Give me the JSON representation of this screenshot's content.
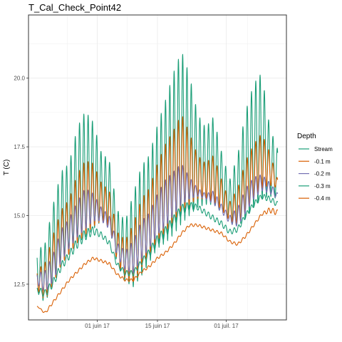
{
  "chart_data": {
    "type": "line",
    "title": "T_Cal_Check_Point42",
    "xlabel": "",
    "ylabel": "T (C)",
    "x_start": "2017-05-18",
    "x_end": "2017-07-13",
    "xlim": [
      "2017-05-16",
      "2017-07-15"
    ],
    "ylim": [
      11.2,
      22.3
    ],
    "x_ticks": [
      {
        "date": "2017-06-01",
        "label": "01 juin 17"
      },
      {
        "date": "2017-06-15",
        "label": "15 juin 17"
      },
      {
        "date": "2017-07-01",
        "label": "01 juil. 17"
      }
    ],
    "y_ticks": [
      {
        "value": 12.5,
        "label": "12.5"
      },
      {
        "value": 15.0,
        "label": "15.0"
      },
      {
        "value": 17.5,
        "label": "17.5"
      },
      {
        "value": 20.0,
        "label": "20.0"
      }
    ],
    "grid": true,
    "legend": {
      "title": "Depth",
      "position": "right"
    },
    "series": [
      {
        "name": "Stream",
        "color": "#1b9e77",
        "min": [
          12.2,
          11.8,
          12.6,
          13.3,
          13.6,
          14.0,
          14.2,
          14.5,
          14.8,
          14.6,
          13.2,
          12.6,
          12.4,
          12.8,
          13.3,
          13.8,
          14.0,
          14.3,
          14.7,
          15.0,
          15.3,
          15.4,
          15.4,
          15.2,
          14.8,
          14.6,
          14.9,
          15.3,
          15.6,
          15.7,
          15.6
        ],
        "max": [
          13.7,
          14.0,
          15.4,
          16.6,
          16.9,
          18.2,
          18.8,
          18.4,
          17.3,
          17.0,
          15.2,
          14.8,
          15.8,
          16.8,
          17.2,
          18.3,
          19.2,
          20.2,
          21.0,
          20.1,
          18.7,
          18.2,
          18.6,
          17.3,
          16.3,
          17.2,
          18.8,
          19.8,
          20.2,
          18.2,
          17.4
        ]
      },
      {
        "name": "-0.1 m",
        "color": "#d95f02",
        "min": [
          12.3,
          11.9,
          12.5,
          13.2,
          13.6,
          14.0,
          14.3,
          14.6,
          14.8,
          14.6,
          13.3,
          12.7,
          12.6,
          13.1,
          13.6,
          14.1,
          14.4,
          14.8,
          15.2,
          15.4,
          15.6,
          15.6,
          15.5,
          15.2,
          14.8,
          14.7,
          15.1,
          15.6,
          16.0,
          16.1,
          16.0
        ],
        "max": [
          13.0,
          13.3,
          14.3,
          15.2,
          15.6,
          16.5,
          17.0,
          16.9,
          16.2,
          15.9,
          14.4,
          14.1,
          14.7,
          15.6,
          16.0,
          16.9,
          17.6,
          18.1,
          18.7,
          18.0,
          17.2,
          16.9,
          17.2,
          16.3,
          15.5,
          16.0,
          17.0,
          17.6,
          18.0,
          17.3,
          16.3
        ]
      },
      {
        "name": "-0.2 m",
        "color": "#7570b3",
        "min": [
          12.5,
          12.2,
          12.6,
          13.3,
          13.8,
          14.2,
          14.5,
          14.8,
          14.8,
          14.5,
          13.5,
          13.0,
          12.9,
          13.4,
          13.8,
          14.3,
          14.6,
          15.0,
          15.4,
          15.6,
          15.7,
          15.6,
          15.4,
          15.1,
          14.7,
          14.6,
          15.1,
          15.6,
          15.9,
          15.8,
          15.6
        ],
        "max": [
          12.9,
          13.0,
          13.6,
          14.5,
          14.9,
          15.5,
          16.0,
          15.8,
          15.3,
          15.0,
          14.0,
          13.7,
          14.1,
          14.8,
          15.1,
          15.8,
          16.3,
          16.6,
          16.9,
          16.4,
          16.0,
          15.8,
          15.9,
          15.4,
          15.0,
          15.3,
          16.0,
          16.4,
          16.5,
          16.2,
          15.8
        ]
      },
      {
        "name": "-0.3 m",
        "color": "#1b9e77",
        "min": [
          12.2,
          12.0,
          12.4,
          13.0,
          13.4,
          13.8,
          14.1,
          14.3,
          14.2,
          13.9,
          13.1,
          12.8,
          12.8,
          13.2,
          13.5,
          13.9,
          14.2,
          14.6,
          15.0,
          15.2,
          15.2,
          15.0,
          14.8,
          14.6,
          14.3,
          14.4,
          14.9,
          15.3,
          15.6,
          15.5,
          15.3
        ],
        "max": [
          12.4,
          12.3,
          12.7,
          13.3,
          13.7,
          14.2,
          14.5,
          14.6,
          14.4,
          14.1,
          13.3,
          13.0,
          13.0,
          13.4,
          13.8,
          14.3,
          14.6,
          15.0,
          15.4,
          15.5,
          15.4,
          15.2,
          15.0,
          14.8,
          14.5,
          14.6,
          15.1,
          15.5,
          15.8,
          15.7,
          15.5
        ]
      },
      {
        "name": "-0.4 m",
        "color": "#d95f02",
        "min": [
          11.7,
          11.4,
          11.8,
          12.2,
          12.6,
          12.9,
          13.2,
          13.4,
          13.3,
          13.2,
          12.8,
          12.6,
          12.6,
          12.9,
          13.1,
          13.4,
          13.6,
          13.9,
          14.3,
          14.6,
          14.6,
          14.5,
          14.4,
          14.3,
          14.0,
          13.9,
          14.2,
          14.6,
          15.0,
          15.1,
          15.0
        ],
        "max": [
          11.7,
          11.5,
          11.9,
          12.3,
          12.7,
          13.0,
          13.3,
          13.5,
          13.4,
          13.3,
          12.9,
          12.7,
          12.7,
          13.0,
          13.2,
          13.5,
          13.7,
          14.0,
          14.4,
          14.7,
          14.7,
          14.6,
          14.5,
          14.4,
          14.1,
          14.0,
          14.3,
          14.7,
          15.1,
          15.3,
          15.2
        ]
      }
    ]
  }
}
